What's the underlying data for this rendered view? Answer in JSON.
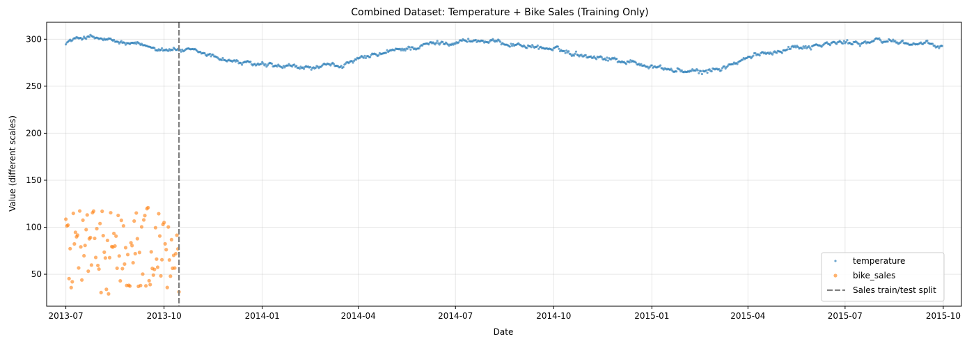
{
  "chart_data": {
    "type": "scatter",
    "title": "Combined Dataset: Temperature + Bike Sales (Training Only)",
    "xlabel": "Date",
    "ylabel": "Value (different scales)",
    "xlim": [
      "2013-06-13",
      "2015-10-18"
    ],
    "ylim": [
      16,
      318
    ],
    "x_ticks": [
      "2013-07-01",
      "2013-10-01",
      "2014-01-01",
      "2014-04-01",
      "2014-07-01",
      "2014-10-01",
      "2015-01-01",
      "2015-04-01",
      "2015-07-01",
      "2015-10-01"
    ],
    "x_tick_labels": [
      "2013-07",
      "2013-10",
      "2014-01",
      "2014-04",
      "2014-07",
      "2014-10",
      "2015-01",
      "2015-04",
      "2015-07",
      "2015-10"
    ],
    "y_ticks": [
      50,
      100,
      150,
      200,
      250,
      300
    ],
    "grid": true,
    "legend_position": "lower-right",
    "split_date": "2013-10-15",
    "series": [
      {
        "name": "temperature",
        "color": "#1f77b4",
        "start": "2013-07-01",
        "end": "2015-09-30",
        "seasonal_anchors": [
          [
            "2013-07-01",
            297
          ],
          [
            "2013-07-20",
            303
          ],
          [
            "2013-08-20",
            296
          ],
          [
            "2013-09-15",
            292
          ],
          [
            "2013-10-15",
            289
          ],
          [
            "2013-11-15",
            282
          ],
          [
            "2013-12-15",
            274
          ],
          [
            "2014-01-15",
            270
          ],
          [
            "2014-02-15",
            269
          ],
          [
            "2014-03-15",
            272
          ],
          [
            "2014-04-15",
            282
          ],
          [
            "2014-05-15",
            290
          ],
          [
            "2014-06-15",
            296
          ],
          [
            "2014-07-15",
            299
          ],
          [
            "2014-08-15",
            296
          ],
          [
            "2014-09-15",
            292
          ],
          [
            "2014-10-15",
            286
          ],
          [
            "2014-11-15",
            281
          ],
          [
            "2014-12-15",
            275
          ],
          [
            "2015-01-15",
            268
          ],
          [
            "2015-02-15",
            264
          ],
          [
            "2015-03-15",
            272
          ],
          [
            "2015-04-15",
            285
          ],
          [
            "2015-05-15",
            292
          ],
          [
            "2015-06-15",
            295
          ],
          [
            "2015-07-15",
            297
          ],
          [
            "2015-08-15",
            298
          ],
          [
            "2015-09-15",
            294
          ],
          [
            "2015-09-30",
            292
          ]
        ]
      },
      {
        "name": "bike_sales",
        "color": "#ff7f0e",
        "start": "2013-07-01",
        "end": "2013-10-15",
        "range": [
          28,
          122
        ]
      },
      {
        "name": "Sales train/test split",
        "color": "#7f7f7f",
        "style": "dashed"
      }
    ]
  }
}
